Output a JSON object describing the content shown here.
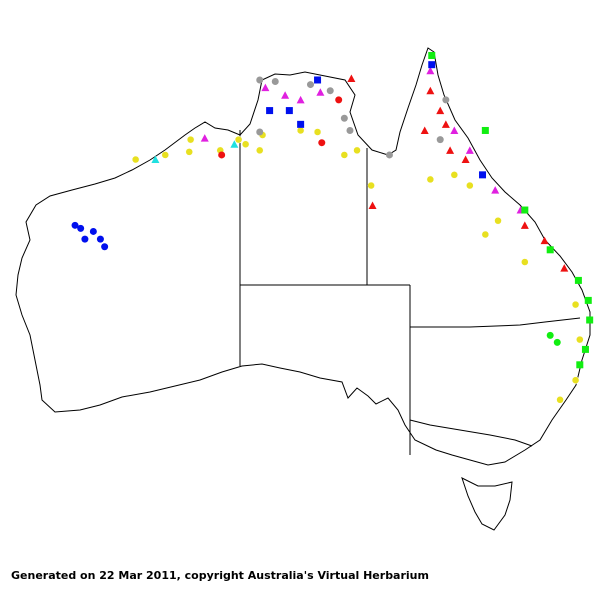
{
  "footer": "Generated on 22 Mar 2011, copyright Australia's Virtual Herbarium",
  "marker_colors": {
    "yellow": "#e8e020",
    "red": "#ee1111",
    "magenta": "#e020e0",
    "gray": "#999999",
    "blue": "#0010ee",
    "green": "#11ee11",
    "cyan": "#20e0e0"
  },
  "records": [
    {
      "lon": 117.3,
      "lat": 22.1,
      "shape": "circle",
      "color": "blue"
    },
    {
      "lon": 117.7,
      "lat": 22.3,
      "shape": "circle",
      "color": "blue"
    },
    {
      "lon": 118.6,
      "lat": 22.5,
      "shape": "circle",
      "color": "blue"
    },
    {
      "lon": 119.1,
      "lat": 23.0,
      "shape": "circle",
      "color": "blue"
    },
    {
      "lon": 118.0,
      "lat": 23.0,
      "shape": "circle",
      "color": "blue"
    },
    {
      "lon": 119.4,
      "lat": 23.5,
      "shape": "circle",
      "color": "blue"
    },
    {
      "lon": 121.6,
      "lat": 17.8,
      "shape": "circle",
      "color": "yellow"
    },
    {
      "lon": 123.7,
      "lat": 17.5,
      "shape": "circle",
      "color": "yellow"
    },
    {
      "lon": 125.5,
      "lat": 16.5,
      "shape": "circle",
      "color": "yellow"
    },
    {
      "lon": 125.4,
      "lat": 17.3,
      "shape": "circle",
      "color": "yellow"
    },
    {
      "lon": 127.6,
      "lat": 17.2,
      "shape": "circle",
      "color": "yellow"
    },
    {
      "lon": 129.4,
      "lat": 16.8,
      "shape": "circle",
      "color": "yellow"
    },
    {
      "lon": 130.4,
      "lat": 17.2,
      "shape": "circle",
      "color": "yellow"
    },
    {
      "lon": 133.3,
      "lat": 15.9,
      "shape": "circle",
      "color": "yellow"
    },
    {
      "lon": 134.5,
      "lat": 16.0,
      "shape": "circle",
      "color": "yellow"
    },
    {
      "lon": 136.4,
      "lat": 17.5,
      "shape": "circle",
      "color": "yellow"
    },
    {
      "lon": 137.3,
      "lat": 17.2,
      "shape": "circle",
      "color": "yellow"
    },
    {
      "lon": 138.3,
      "lat": 19.5,
      "shape": "circle",
      "color": "yellow"
    },
    {
      "lon": 142.5,
      "lat": 19.1,
      "shape": "circle",
      "color": "yellow"
    },
    {
      "lon": 144.2,
      "lat": 18.8,
      "shape": "circle",
      "color": "yellow"
    },
    {
      "lon": 145.3,
      "lat": 19.5,
      "shape": "circle",
      "color": "yellow"
    },
    {
      "lon": 146.4,
      "lat": 22.7,
      "shape": "circle",
      "color": "yellow"
    },
    {
      "lon": 147.3,
      "lat": 21.8,
      "shape": "circle",
      "color": "yellow"
    },
    {
      "lon": 149.2,
      "lat": 24.5,
      "shape": "circle",
      "color": "yellow"
    },
    {
      "lon": 152.8,
      "lat": 27.4,
      "shape": "circle",
      "color": "yellow"
    },
    {
      "lon": 153.1,
      "lat": 29.9,
      "shape": "circle",
      "color": "yellow"
    },
    {
      "lon": 152.8,
      "lat": 32.8,
      "shape": "circle",
      "color": "yellow"
    },
    {
      "lon": 151.7,
      "lat": 34.2,
      "shape": "circle",
      "color": "yellow"
    },
    {
      "lon": 128.9,
      "lat": 16.5,
      "shape": "circle",
      "color": "yellow"
    },
    {
      "lon": 130.6,
      "lat": 16.2,
      "shape": "circle",
      "color": "yellow"
    },
    {
      "lon": 136.9,
      "lat": 12.5,
      "shape": "triangle",
      "color": "red"
    },
    {
      "lon": 142.5,
      "lat": 13.3,
      "shape": "triangle",
      "color": "red"
    },
    {
      "lon": 143.2,
      "lat": 14.6,
      "shape": "triangle",
      "color": "red"
    },
    {
      "lon": 143.6,
      "lat": 15.5,
      "shape": "triangle",
      "color": "red"
    },
    {
      "lon": 142.1,
      "lat": 15.9,
      "shape": "triangle",
      "color": "red"
    },
    {
      "lon": 143.9,
      "lat": 17.2,
      "shape": "triangle",
      "color": "red"
    },
    {
      "lon": 145.0,
      "lat": 17.8,
      "shape": "triangle",
      "color": "red"
    },
    {
      "lon": 138.4,
      "lat": 20.8,
      "shape": "triangle",
      "color": "red"
    },
    {
      "lon": 150.6,
      "lat": 23.1,
      "shape": "triangle",
      "color": "red"
    },
    {
      "lon": 152.0,
      "lat": 24.9,
      "shape": "triangle",
      "color": "red"
    },
    {
      "lon": 149.2,
      "lat": 22.1,
      "shape": "triangle",
      "color": "red"
    },
    {
      "lon": 134.8,
      "lat": 16.7,
      "shape": "circle",
      "color": "red"
    },
    {
      "lon": 127.7,
      "lat": 17.5,
      "shape": "circle",
      "color": "red"
    },
    {
      "lon": 136.0,
      "lat": 13.9,
      "shape": "circle",
      "color": "red"
    },
    {
      "lon": 130.8,
      "lat": 13.1,
      "shape": "triangle",
      "color": "magenta"
    },
    {
      "lon": 132.2,
      "lat": 13.6,
      "shape": "triangle",
      "color": "magenta"
    },
    {
      "lon": 133.3,
      "lat": 13.9,
      "shape": "triangle",
      "color": "magenta"
    },
    {
      "lon": 126.5,
      "lat": 16.4,
      "shape": "triangle",
      "color": "magenta"
    },
    {
      "lon": 142.5,
      "lat": 12.0,
      "shape": "triangle",
      "color": "magenta"
    },
    {
      "lon": 144.2,
      "lat": 15.9,
      "shape": "triangle",
      "color": "magenta"
    },
    {
      "lon": 145.3,
      "lat": 17.2,
      "shape": "triangle",
      "color": "magenta"
    },
    {
      "lon": 147.1,
      "lat": 19.8,
      "shape": "triangle",
      "color": "magenta"
    },
    {
      "lon": 148.9,
      "lat": 21.1,
      "shape": "triangle",
      "color": "magenta"
    },
    {
      "lon": 134.7,
      "lat": 13.4,
      "shape": "triangle",
      "color": "magenta"
    },
    {
      "lon": 130.4,
      "lat": 12.6,
      "shape": "circle",
      "color": "gray"
    },
    {
      "lon": 131.5,
      "lat": 12.7,
      "shape": "circle",
      "color": "gray"
    },
    {
      "lon": 134.0,
      "lat": 12.9,
      "shape": "circle",
      "color": "gray"
    },
    {
      "lon": 135.4,
      "lat": 13.3,
      "shape": "circle",
      "color": "gray"
    },
    {
      "lon": 136.4,
      "lat": 15.1,
      "shape": "circle",
      "color": "gray"
    },
    {
      "lon": 136.8,
      "lat": 15.9,
      "shape": "circle",
      "color": "gray"
    },
    {
      "lon": 139.6,
      "lat": 17.5,
      "shape": "circle",
      "color": "gray"
    },
    {
      "lon": 130.4,
      "lat": 16.0,
      "shape": "circle",
      "color": "gray"
    },
    {
      "lon": 143.2,
      "lat": 16.5,
      "shape": "circle",
      "color": "gray"
    },
    {
      "lon": 143.6,
      "lat": 13.9,
      "shape": "circle",
      "color": "gray"
    },
    {
      "lon": 132.5,
      "lat": 14.6,
      "shape": "square",
      "color": "blue"
    },
    {
      "lon": 133.3,
      "lat": 15.5,
      "shape": "square",
      "color": "blue"
    },
    {
      "lon": 131.1,
      "lat": 14.6,
      "shape": "square",
      "color": "blue"
    },
    {
      "lon": 134.5,
      "lat": 12.6,
      "shape": "square",
      "color": "blue"
    },
    {
      "lon": 142.6,
      "lat": 11.6,
      "shape": "square",
      "color": "blue"
    },
    {
      "lon": 146.2,
      "lat": 18.8,
      "shape": "square",
      "color": "blue"
    },
    {
      "lon": 146.4,
      "lat": 15.9,
      "shape": "square",
      "color": "green"
    },
    {
      "lon": 149.2,
      "lat": 21.1,
      "shape": "square",
      "color": "green"
    },
    {
      "lon": 151.0,
      "lat": 23.7,
      "shape": "square",
      "color": "green"
    },
    {
      "lon": 153.0,
      "lat": 25.7,
      "shape": "square",
      "color": "green"
    },
    {
      "lon": 153.7,
      "lat": 27.1,
      "shape": "square",
      "color": "green"
    },
    {
      "lon": 153.8,
      "lat": 28.5,
      "shape": "square",
      "color": "green"
    },
    {
      "lon": 153.5,
      "lat": 30.6,
      "shape": "square",
      "color": "green"
    },
    {
      "lon": 153.1,
      "lat": 31.7,
      "shape": "square",
      "color": "green"
    },
    {
      "lon": 142.6,
      "lat": 11.0,
      "shape": "square",
      "color": "green"
    },
    {
      "lon": 151.0,
      "lat": 29.6,
      "shape": "circle",
      "color": "green"
    },
    {
      "lon": 151.5,
      "lat": 30.1,
      "shape": "circle",
      "color": "green"
    },
    {
      "lon": 128.6,
      "lat": 16.8,
      "shape": "triangle",
      "color": "cyan"
    },
    {
      "lon": 123.0,
      "lat": 17.8,
      "shape": "triangle",
      "color": "cyan"
    }
  ]
}
